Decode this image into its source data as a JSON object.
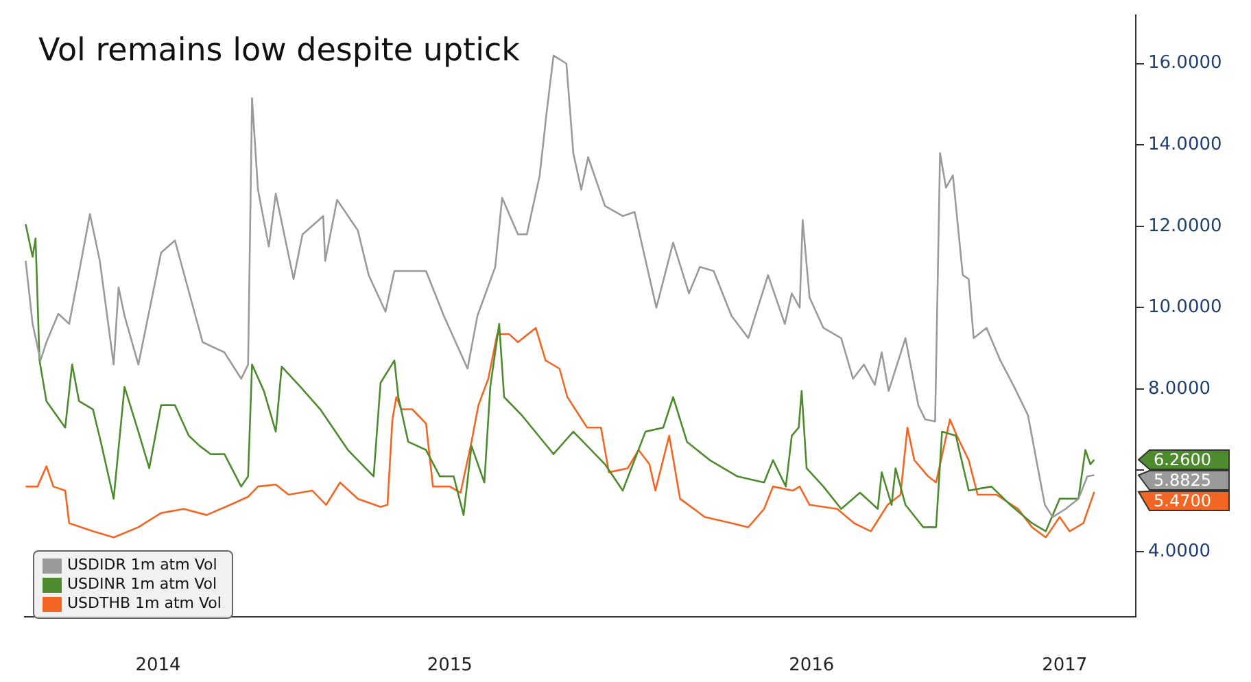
{
  "chart_data": {
    "type": "line",
    "title": "Vol remains low despite uptick",
    "xlim": [
      "2014-04-28",
      "2017-05-26"
    ],
    "xticks": [
      {
        "value": "2014-09-10",
        "label": "2014"
      },
      {
        "value": "2015-07-02",
        "label": "2015"
      },
      {
        "value": "2016-07-02",
        "label": "2016"
      },
      {
        "value": "2017-03-15",
        "label": "2017"
      }
    ],
    "ylim": [
      2.4,
      17.2
    ],
    "yticks": [
      {
        "value": 4,
        "label": "4.0000"
      },
      {
        "value": 6,
        "label": null
      },
      {
        "value": 8,
        "label": "8.0000"
      },
      {
        "value": 10,
        "label": "10.0000"
      },
      {
        "value": 12,
        "label": "12.0000"
      },
      {
        "value": 14,
        "label": "14.0000"
      },
      {
        "value": 16,
        "label": "16.0000"
      }
    ],
    "grid": false,
    "legend": "bottom left",
    "marker": "none",
    "line_style": "solid",
    "annotations": [
      "5.8825",
      "6.2600",
      "5.4700"
    ],
    "series": [
      {
        "name": "USDIDR 1m atm Vol",
        "color": "#9a9a9a",
        "x": [
          "2014-04-29",
          "2014-05-06",
          "2014-05-14",
          "2014-05-20",
          "2014-06-01",
          "2014-06-12",
          "2014-06-23",
          "2014-07-03",
          "2014-07-13",
          "2014-07-27",
          "2014-08-01",
          "2014-08-07",
          "2014-08-21",
          "2014-09-13",
          "2014-09-27",
          "2014-10-25",
          "2014-11-16",
          "2014-12-03",
          "2014-12-10",
          "2014-12-14",
          "2014-12-20",
          "2014-12-31",
          "2015-01-07",
          "2015-01-25",
          "2015-02-03",
          "2015-02-24",
          "2015-02-26",
          "2015-03-10",
          "2015-03-31",
          "2015-04-11",
          "2015-04-28",
          "2015-05-07",
          "2015-06-08",
          "2015-06-26",
          "2015-07-20",
          "2015-07-30",
          "2015-08-17",
          "2015-08-24",
          "2015-09-09",
          "2015-09-18",
          "2015-10-01",
          "2015-10-08",
          "2015-10-15",
          "2015-10-28",
          "2015-11-04",
          "2015-11-12",
          "2015-11-19",
          "2015-12-06",
          "2015-12-24",
          "2016-01-05",
          "2016-01-12",
          "2016-01-27",
          "2016-02-13",
          "2016-02-29",
          "2016-03-11",
          "2016-03-25",
          "2016-04-12",
          "2016-04-29",
          "2016-05-19",
          "2016-06-05",
          "2016-06-12",
          "2016-06-20",
          "2016-06-23",
          "2016-06-30",
          "2016-07-14",
          "2016-08-01",
          "2016-08-13",
          "2016-08-24",
          "2016-09-04",
          "2016-09-11",
          "2016-09-18",
          "2016-10-05",
          "2016-10-18",
          "2016-10-25",
          "2016-11-04",
          "2016-11-09",
          "2016-11-15",
          "2016-11-22",
          "2016-12-02",
          "2016-12-08",
          "2016-12-13",
          "2016-12-26",
          "2017-01-09",
          "2017-01-23",
          "2017-02-06",
          "2017-02-16",
          "2017-02-23",
          "2017-03-03",
          "2017-03-16",
          "2017-03-29",
          "2017-04-07",
          "2017-04-14"
        ],
        "values": [
          11.15,
          9.6,
          8.7,
          9.15,
          9.85,
          9.6,
          11.0,
          12.3,
          11.15,
          8.6,
          10.5,
          9.8,
          8.6,
          11.35,
          11.65,
          9.15,
          8.9,
          8.25,
          8.6,
          15.15,
          12.9,
          11.5,
          12.8,
          10.7,
          11.8,
          12.25,
          11.15,
          12.65,
          11.9,
          10.8,
          9.9,
          10.9,
          10.9,
          9.8,
          8.5,
          9.8,
          11.0,
          12.7,
          11.8,
          11.8,
          13.25,
          14.8,
          16.2,
          16.0,
          13.8,
          12.9,
          13.7,
          12.5,
          12.25,
          12.35,
          11.6,
          10.0,
          11.6,
          10.35,
          11.0,
          10.9,
          9.8,
          9.25,
          10.8,
          9.6,
          10.35,
          10.0,
          12.15,
          10.25,
          9.5,
          9.25,
          8.25,
          8.6,
          8.1,
          8.9,
          7.95,
          9.25,
          7.6,
          7.25,
          7.2,
          13.8,
          12.95,
          13.25,
          10.8,
          10.7,
          9.25,
          9.5,
          8.7,
          8.05,
          7.35,
          6.05,
          5.15,
          4.85,
          5.05,
          5.3,
          5.85,
          5.88
        ]
      },
      {
        "name": "USDINR 1m atm Vol",
        "color": "#4e8a2e",
        "x": [
          "2014-04-29",
          "2014-05-06",
          "2014-05-09",
          "2014-05-13",
          "2014-05-20",
          "2014-06-08",
          "2014-06-15",
          "2014-06-22",
          "2014-07-06",
          "2014-07-14",
          "2014-07-27",
          "2014-08-07",
          "2014-08-21",
          "2014-09-01",
          "2014-09-13",
          "2014-09-27",
          "2014-10-11",
          "2014-10-22",
          "2014-11-02",
          "2014-11-16",
          "2014-12-03",
          "2014-12-10",
          "2014-12-14",
          "2014-12-26",
          "2015-01-07",
          "2015-01-13",
          "2015-02-01",
          "2015-02-21",
          "2015-03-21",
          "2015-04-16",
          "2015-04-23",
          "2015-05-07",
          "2015-05-11",
          "2015-05-21",
          "2015-06-08",
          "2015-06-22",
          "2015-07-06",
          "2015-07-16",
          "2015-07-24",
          "2015-08-06",
          "2015-08-12",
          "2015-08-21",
          "2015-08-26",
          "2015-09-13",
          "2015-10-15",
          "2015-11-04",
          "2015-11-18",
          "2015-12-06",
          "2015-12-24",
          "2016-01-16",
          "2016-02-03",
          "2016-02-13",
          "2016-02-27",
          "2016-03-21",
          "2016-04-18",
          "2016-05-15",
          "2016-05-24",
          "2016-06-06",
          "2016-06-12",
          "2016-06-19",
          "2016-06-22",
          "2016-06-27",
          "2016-07-14",
          "2016-08-01",
          "2016-08-20",
          "2016-09-07",
          "2016-09-11",
          "2016-09-21",
          "2016-09-25",
          "2016-10-05",
          "2016-10-23",
          "2016-11-05",
          "2016-11-11",
          "2016-11-25",
          "2016-12-08",
          "2016-12-31",
          "2017-01-19",
          "2017-02-10",
          "2017-02-24",
          "2017-03-10",
          "2017-03-29",
          "2017-04-05",
          "2017-04-10",
          "2017-04-14"
        ],
        "values": [
          12.05,
          11.25,
          11.7,
          8.7,
          7.7,
          7.05,
          8.6,
          7.7,
          7.5,
          6.7,
          5.3,
          8.05,
          6.95,
          6.05,
          7.6,
          7.6,
          6.85,
          6.6,
          6.4,
          6.4,
          5.6,
          5.85,
          8.6,
          7.95,
          6.95,
          8.55,
          8.05,
          7.5,
          6.5,
          5.85,
          8.15,
          8.7,
          7.8,
          6.7,
          6.5,
          5.85,
          5.85,
          4.9,
          6.6,
          5.7,
          8.05,
          9.6,
          7.8,
          7.35,
          6.4,
          6.95,
          6.6,
          6.15,
          5.5,
          6.95,
          7.05,
          7.8,
          6.7,
          6.25,
          5.85,
          5.7,
          6.25,
          5.6,
          6.85,
          7.05,
          7.95,
          6.05,
          5.6,
          5.05,
          5.45,
          5.05,
          5.95,
          5.15,
          6.05,
          5.15,
          4.6,
          4.6,
          6.95,
          6.85,
          5.5,
          5.6,
          5.15,
          4.7,
          4.5,
          5.3,
          5.3,
          6.5,
          6.15,
          6.26
        ]
      },
      {
        "name": "USDTHB 1m atm Vol",
        "color": "#f26522",
        "x": [
          "2014-04-29",
          "2014-05-11",
          "2014-05-20",
          "2014-05-27",
          "2014-06-08",
          "2014-06-12",
          "2014-07-06",
          "2014-07-27",
          "2014-08-21",
          "2014-09-13",
          "2014-10-06",
          "2014-10-29",
          "2014-11-22",
          "2014-12-10",
          "2014-12-20",
          "2015-01-07",
          "2015-01-20",
          "2015-02-13",
          "2015-02-27",
          "2015-03-13",
          "2015-03-31",
          "2015-04-23",
          "2015-04-30",
          "2015-05-05",
          "2015-05-09",
          "2015-05-14",
          "2015-05-25",
          "2015-06-08",
          "2015-06-15",
          "2015-07-02",
          "2015-07-13",
          "2015-07-24",
          "2015-07-31",
          "2015-08-10",
          "2015-08-19",
          "2015-08-31",
          "2015-09-09",
          "2015-09-27",
          "2015-10-07",
          "2015-10-21",
          "2015-10-29",
          "2015-11-18",
          "2015-12-02",
          "2015-12-10",
          "2015-12-29",
          "2016-01-09",
          "2016-01-20",
          "2016-01-26",
          "2016-02-09",
          "2016-02-20",
          "2016-03-16",
          "2016-04-12",
          "2016-04-29",
          "2016-05-15",
          "2016-05-24",
          "2016-06-13",
          "2016-06-20",
          "2016-06-30",
          "2016-07-28",
          "2016-08-14",
          "2016-08-31",
          "2016-09-17",
          "2016-09-30",
          "2016-10-07",
          "2016-10-14",
          "2016-10-28",
          "2016-11-05",
          "2016-11-19",
          "2016-11-26",
          "2016-12-08",
          "2016-12-17",
          "2017-01-05",
          "2017-01-27",
          "2017-02-10",
          "2017-02-24",
          "2017-03-10",
          "2017-03-20",
          "2017-04-03",
          "2017-04-14"
        ],
        "values": [
          5.6,
          5.6,
          6.1,
          5.6,
          5.5,
          4.7,
          4.5,
          4.35,
          4.6,
          4.95,
          5.05,
          4.9,
          5.15,
          5.35,
          5.6,
          5.65,
          5.4,
          5.5,
          5.15,
          5.7,
          5.3,
          5.1,
          5.15,
          7.25,
          7.8,
          7.5,
          7.5,
          7.15,
          5.6,
          5.6,
          5.45,
          6.7,
          7.6,
          8.25,
          9.35,
          9.35,
          9.15,
          9.5,
          8.7,
          8.5,
          7.8,
          7.05,
          7.05,
          5.95,
          6.05,
          6.5,
          6.15,
          5.5,
          6.85,
          5.3,
          4.85,
          4.7,
          4.6,
          5.05,
          5.6,
          5.5,
          5.6,
          5.15,
          5.05,
          4.7,
          4.5,
          5.15,
          5.4,
          7.05,
          6.25,
          5.85,
          5.7,
          7.25,
          6.85,
          6.25,
          5.4,
          5.4,
          5.05,
          4.6,
          4.35,
          4.85,
          4.5,
          4.7,
          5.47
        ]
      }
    ]
  }
}
